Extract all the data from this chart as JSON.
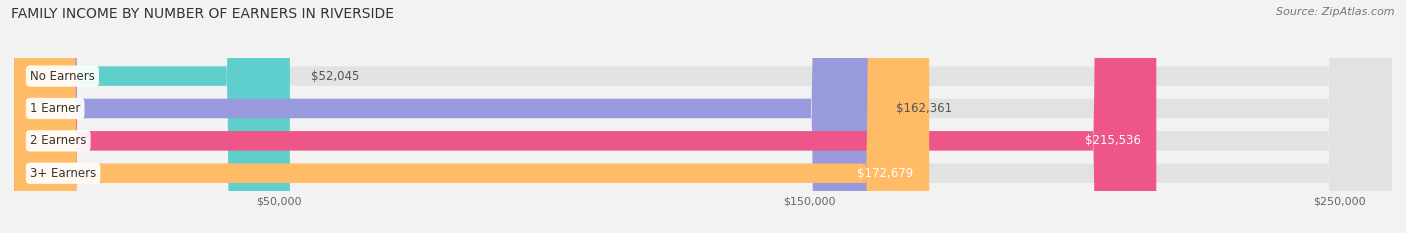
{
  "title": "FAMILY INCOME BY NUMBER OF EARNERS IN RIVERSIDE",
  "source": "Source: ZipAtlas.com",
  "categories": [
    "No Earners",
    "1 Earner",
    "2 Earners",
    "3+ Earners"
  ],
  "values": [
    52045,
    162361,
    215536,
    172679
  ],
  "bar_colors": [
    "#5ecfcc",
    "#9999dd",
    "#ee5588",
    "#ffbb66"
  ],
  "label_colors": [
    "#555555",
    "#555555",
    "#ffffff",
    "#ffffff"
  ],
  "xlim": [
    0,
    260000
  ],
  "xticks": [
    50000,
    150000,
    250000
  ],
  "xtick_labels": [
    "$50,000",
    "$150,000",
    "$250,000"
  ],
  "background_color": "#f2f2f2",
  "bar_bg_color": "#e2e2e2",
  "title_fontsize": 10,
  "source_fontsize": 8,
  "bar_label_fontsize": 8.5,
  "category_fontsize": 8.5
}
